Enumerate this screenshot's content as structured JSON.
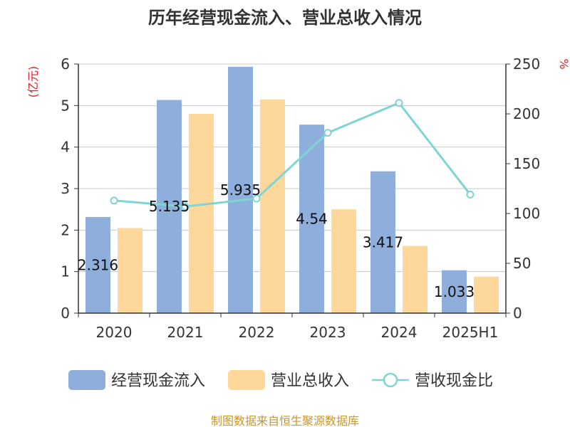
{
  "chart_data": {
    "type": "bar",
    "title": "历年经营现金流入、营业总收入情况",
    "categories": [
      "2020",
      "2021",
      "2022",
      "2023",
      "2024",
      "2025H1"
    ],
    "series": [
      {
        "name": "经营现金流入",
        "type": "bar",
        "axis": "left",
        "color": "#8eaedb",
        "values": [
          2.316,
          5.135,
          5.935,
          4.54,
          3.417,
          1.033
        ],
        "labels": [
          "2.316",
          "5.135",
          "5.935",
          "4.54",
          "3.417",
          "1.033"
        ]
      },
      {
        "name": "营业总收入",
        "type": "bar",
        "axis": "left",
        "color": "#fdd89a",
        "values": [
          2.05,
          4.8,
          5.15,
          2.5,
          1.62,
          0.88
        ]
      },
      {
        "name": "营收现金比",
        "type": "line",
        "axis": "right",
        "color": "#7fd4d4",
        "values": [
          113,
          107,
          115,
          181,
          211,
          119
        ]
      }
    ],
    "y_left": {
      "unit": "(亿元)",
      "ylim": [
        0,
        6
      ],
      "ticks": [
        "0",
        "1",
        "2",
        "3",
        "4",
        "5",
        "6"
      ]
    },
    "y_right": {
      "unit": "%",
      "ylim": [
        0,
        250
      ],
      "ticks": [
        "0",
        "50",
        "100",
        "150",
        "200",
        "250"
      ]
    },
    "grid": true,
    "legend_position": "bottom"
  },
  "footer": "制图数据来自恒生聚源数据库"
}
